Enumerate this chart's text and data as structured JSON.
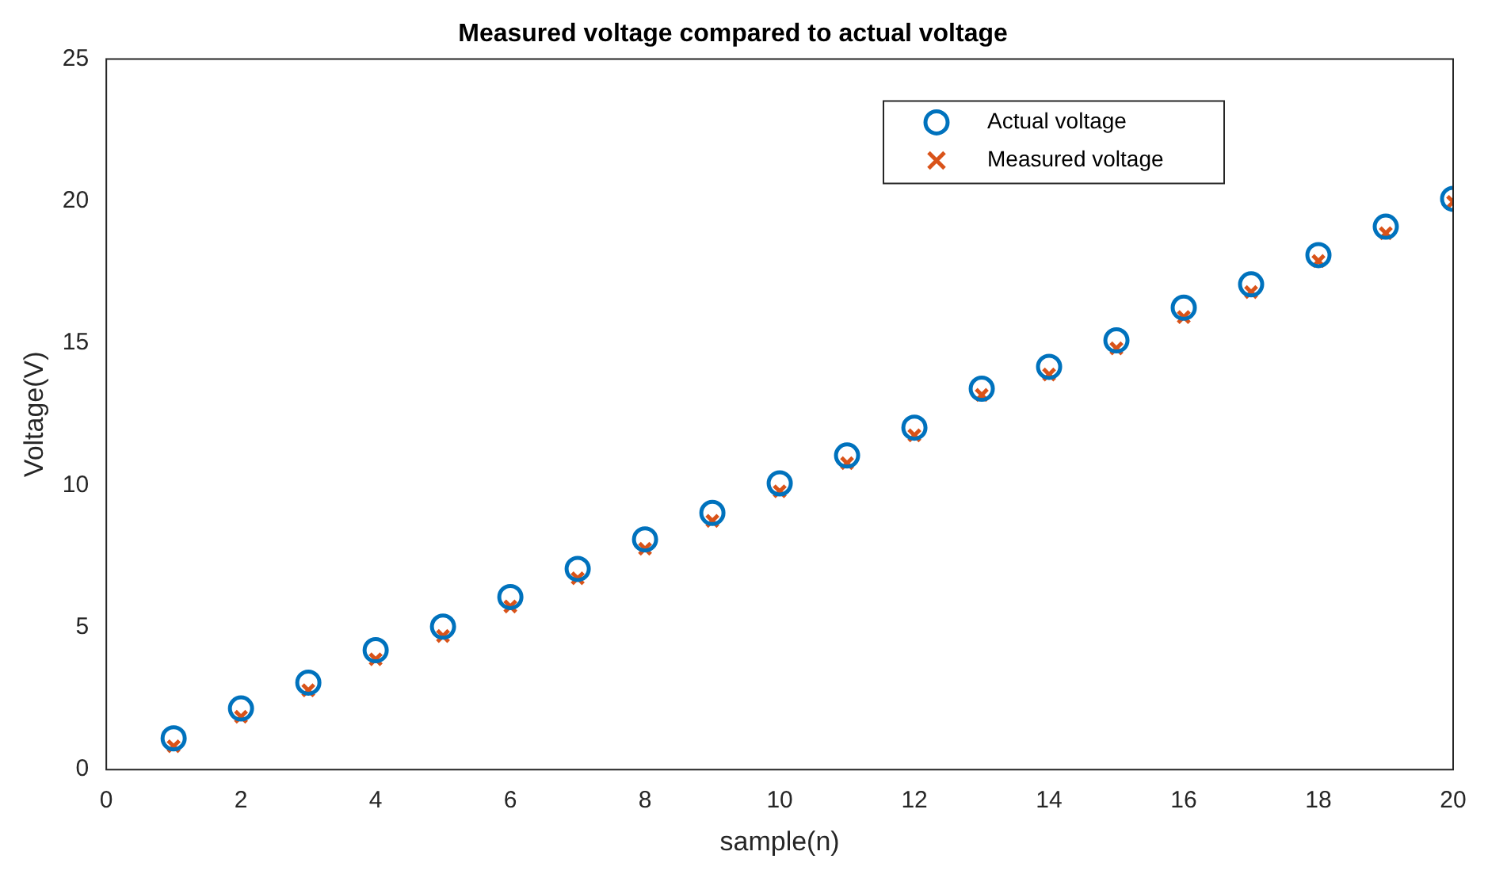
{
  "chart_data": {
    "type": "scatter",
    "title": "Measured voltage compared to actual voltage",
    "xlabel": "sample(n)",
    "ylabel": "Voltage(V)",
    "x": [
      1,
      2,
      3,
      4,
      5,
      6,
      7,
      8,
      9,
      10,
      11,
      12,
      13,
      14,
      15,
      16,
      17,
      18,
      19,
      20
    ],
    "series": [
      {
        "name": "Actual voltage",
        "color": "#0072bd",
        "marker": "circle",
        "values": [
          1.1,
          2.15,
          3.06,
          4.2,
          5.03,
          6.07,
          7.06,
          8.1,
          9.03,
          10.07,
          11.05,
          12.03,
          13.4,
          14.17,
          15.1,
          16.25,
          17.07,
          18.1,
          19.1,
          20.08
        ]
      },
      {
        "name": "Measured voltage",
        "color": "#d95319",
        "marker": "cross",
        "values": [
          0.82,
          1.86,
          2.79,
          3.88,
          4.7,
          5.74,
          6.73,
          7.77,
          8.75,
          9.79,
          10.78,
          11.76,
          13.18,
          13.9,
          14.82,
          15.92,
          16.8,
          17.89,
          18.87,
          19.97
        ]
      }
    ],
    "xlim": [
      0,
      20
    ],
    "xticks": [
      0,
      2,
      4,
      6,
      8,
      10,
      12,
      14,
      16,
      18,
      20
    ],
    "ylim": [
      0,
      25
    ],
    "yticks": [
      0,
      5,
      10,
      15,
      20,
      25
    ],
    "legend": "top right"
  }
}
